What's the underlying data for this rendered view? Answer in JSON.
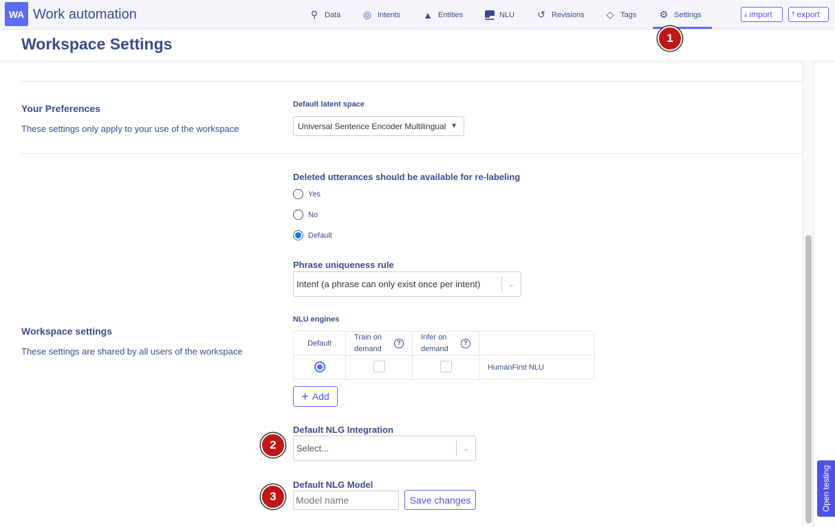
{
  "app": {
    "logo": "WA",
    "title": "Work automation"
  },
  "nav": [
    {
      "label": "Data",
      "icon": "search-icon"
    },
    {
      "label": "Intents",
      "icon": "target-icon"
    },
    {
      "label": "Entities",
      "icon": "shapes-icon"
    },
    {
      "label": "NLU",
      "icon": "bar-chart-icon"
    },
    {
      "label": "Revisions",
      "icon": "history-icon"
    },
    {
      "label": "Tags",
      "icon": "tag-icon"
    },
    {
      "label": "Settings",
      "icon": "gear-icon",
      "active": true
    }
  ],
  "header_buttons": {
    "import": "import",
    "export": "export"
  },
  "page_title": "Workspace Settings",
  "annotations": [
    "1",
    "2",
    "3"
  ],
  "preferences": {
    "title": "Your Preferences",
    "description": "These settings only apply to your use of the workspace",
    "latent_space_label": "Default latent space",
    "latent_space_value": "Universal Sentence Encoder Multilingual"
  },
  "workspace": {
    "title": "Workspace settings",
    "description": "These settings are shared by all users of the workspace",
    "deleted_label": "Deleted utterances should be available for re-labeling",
    "deleted_options": [
      "Yes",
      "No",
      "Default"
    ],
    "deleted_selected": "Default",
    "phrase_label": "Phrase uniqueness rule",
    "phrase_value": "Intent (a phrase can only exist once per intent)",
    "nlu_label": "NLU engines",
    "nlu_headers": [
      "Default",
      "Train on demand",
      "Infer on demand",
      ""
    ],
    "nlu_rows": [
      {
        "name": "HumanFirst NLU",
        "default": true,
        "train_on_demand": false,
        "infer_on_demand": false
      }
    ],
    "add_label": "Add",
    "nlg_integration_label": "Default NLG Integration",
    "nlg_integration_placeholder": "Select...",
    "nlg_model_label": "Default NLG Model",
    "nlg_model_placeholder": "Model name",
    "save_label": "Save changes"
  },
  "open_testing": "Open testing",
  "colors": {
    "accent": "#5b6cf5",
    "text": "#3b4a8c",
    "annotation": "#c01616"
  }
}
